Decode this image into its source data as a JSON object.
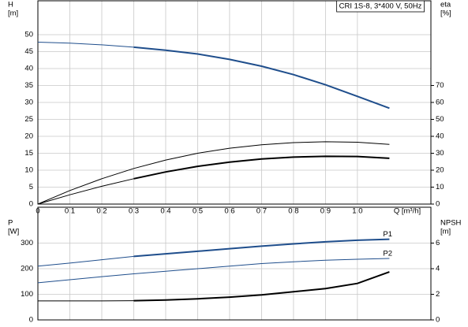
{
  "chart_data": [
    {
      "type": "line",
      "title": "CRI 1S-8, 3*400 V, 50Hz",
      "ylabel": [
        "H",
        "[m]"
      ],
      "y2label": [
        "eta",
        "[%]"
      ],
      "xlabel": "Q [m³/h]",
      "x": [
        0,
        0.1,
        0.2,
        0.3,
        0.4,
        0.5,
        0.6,
        0.7,
        0.8,
        0.9,
        1.0,
        1.1
      ],
      "xlim": [
        0,
        1.23
      ],
      "xticks": [
        0,
        0.1,
        0.2,
        0.3,
        0.4,
        0.5,
        0.6,
        0.7,
        0.8,
        0.9,
        {
          "value": 1.0,
          "label": "1.0"
        }
      ],
      "ylim": [
        0,
        60
      ],
      "yticks": [
        0,
        5,
        10,
        15,
        20,
        25,
        30,
        35,
        40,
        45,
        50
      ],
      "y2lim": [
        0,
        120
      ],
      "y2ticks": [
        0,
        10,
        20,
        30,
        40,
        50,
        60,
        70
      ],
      "grid": true,
      "series": [
        {
          "color": "#1f4e8c",
          "width": 1,
          "values": [
            47.8,
            47.5,
            47,
            46.3,
            null,
            null,
            null,
            null,
            null,
            null,
            null,
            null
          ]
        },
        {
          "color": "#1f4e8c",
          "width": 2,
          "values": [
            null,
            null,
            null,
            46.3,
            45.4,
            44.3,
            42.7,
            40.7,
            38.2,
            35.2,
            31.8,
            28.3
          ]
        },
        {
          "color": "#000000",
          "width": 1,
          "axis": "y2",
          "values": [
            0,
            8,
            15,
            21,
            26,
            30,
            33,
            35,
            36.3,
            36.8,
            36.5,
            35.2
          ]
        },
        {
          "color": "#000000",
          "width": 1,
          "axis": "y2",
          "values": [
            0,
            5.5,
            10.5,
            15,
            null,
            null,
            null,
            null,
            null,
            null,
            null,
            null
          ]
        },
        {
          "color": "#000000",
          "width": 2,
          "axis": "y2",
          "values": [
            null,
            null,
            null,
            15,
            19,
            22.3,
            24.8,
            26.6,
            27.7,
            28.2,
            28.1,
            27
          ]
        }
      ]
    },
    {
      "type": "line",
      "ylabel": [
        "P",
        "[W]"
      ],
      "y2label": [
        "NPSH",
        "[m]"
      ],
      "x": [
        0,
        0.1,
        0.2,
        0.3,
        0.4,
        0.5,
        0.6,
        0.7,
        0.8,
        0.9,
        1.0,
        1.1
      ],
      "xlim": [
        0,
        1.23
      ],
      "xticks": [
        0,
        0.1,
        0.2,
        0.3,
        0.4,
        0.5,
        0.6,
        0.7,
        0.8,
        0.9,
        1.0
      ],
      "ylim": [
        0,
        440
      ],
      "yticks": [
        0,
        100,
        200,
        300
      ],
      "y2lim": [
        0,
        8.8
      ],
      "y2ticks": [
        0,
        2,
        4,
        6
      ],
      "grid": true,
      "series": [
        {
          "color": "#1f4e8c",
          "width": 1,
          "values": [
            210,
            222,
            235,
            248,
            null,
            null,
            null,
            null,
            null,
            null,
            null,
            null
          ]
        },
        {
          "name": "P1",
          "color": "#1f4e8c",
          "width": 2,
          "values": [
            null,
            null,
            null,
            248,
            258,
            268,
            278,
            288,
            297,
            305,
            311,
            315
          ]
        },
        {
          "name": "P2",
          "color": "#1f4e8c",
          "width": 1,
          "values": [
            145,
            157,
            169,
            180,
            190,
            200,
            210,
            220,
            227,
            233,
            237,
            240
          ]
        },
        {
          "color": "#000000",
          "width": 1,
          "axis": "y2",
          "values": [
            1.48,
            1.48,
            1.48,
            1.5,
            null,
            null,
            null,
            null,
            null,
            null,
            null,
            null
          ]
        },
        {
          "color": "#000000",
          "width": 2,
          "axis": "y2",
          "values": [
            null,
            null,
            null,
            1.5,
            1.55,
            1.65,
            1.78,
            1.95,
            2.2,
            2.45,
            2.85,
            3.75
          ]
        }
      ]
    }
  ]
}
